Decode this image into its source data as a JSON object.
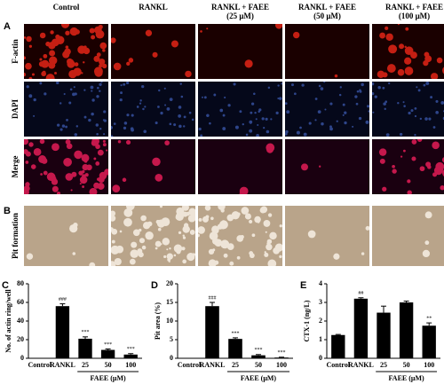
{
  "figure": {
    "panel_letters": [
      "A",
      "B",
      "C",
      "D",
      "E"
    ],
    "column_headers": [
      [
        "Control"
      ],
      [
        "RANKL"
      ],
      [
        "RANKL + FAEE",
        "(25 μM)"
      ],
      [
        "RANKL + FAEE",
        "(50 μM)"
      ],
      [
        "RANKL + FAEE",
        "(100 μM)"
      ]
    ],
    "row_labels": [
      "F-actin",
      "DAPI",
      "Merge",
      "Pit formation"
    ]
  },
  "chart_data": [
    {
      "type": "bar",
      "y_label": "No. of actin ring/well",
      "categories": [
        "Control",
        "RANKL",
        "25",
        "50",
        "100"
      ],
      "values": [
        0,
        56,
        21,
        9,
        4
      ],
      "errors": [
        0,
        2.5,
        2,
        1,
        1
      ],
      "annotations": [
        null,
        "###",
        "***",
        "***",
        "***"
      ],
      "group_label": "FAEE (μM)",
      "color": "#000000",
      "ylim": [
        0,
        80
      ],
      "yticks": [
        0,
        20,
        40,
        60,
        80
      ]
    },
    {
      "type": "bar",
      "y_label": "Pit area (%)",
      "categories": [
        "Control",
        "RANKL",
        "25",
        "50",
        "100"
      ],
      "values": [
        0,
        14,
        5.2,
        0.8,
        0.2
      ],
      "errors": [
        0,
        1,
        0.3,
        0.2,
        0.1
      ],
      "annotations": [
        null,
        "###",
        "***",
        "***",
        "***"
      ],
      "group_label": "FAEE (μM)",
      "color": "#000000",
      "ylim": [
        0,
        20
      ],
      "yticks": [
        0,
        5,
        10,
        15,
        20
      ]
    },
    {
      "type": "bar",
      "y_label": "CTX-1 (ng/L)",
      "categories": [
        "Control",
        "RANKL",
        "25",
        "50",
        "100"
      ],
      "values": [
        1.25,
        3.2,
        2.45,
        3.0,
        1.75
      ],
      "errors": [
        0.03,
        0.05,
        0.35,
        0.07,
        0.15
      ],
      "annotations": [
        null,
        "##",
        null,
        null,
        "**"
      ],
      "group_label": "FAEE (μM)",
      "color": "#000000",
      "ylim": [
        0,
        4
      ],
      "yticks": [
        0,
        1,
        2,
        3,
        4
      ]
    }
  ]
}
